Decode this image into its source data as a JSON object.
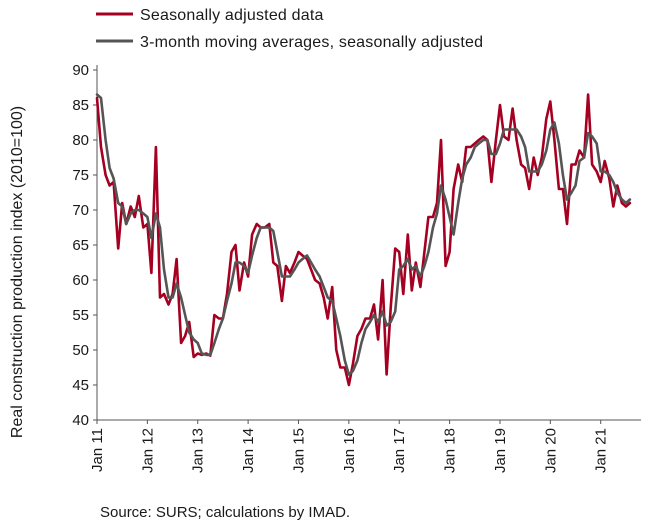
{
  "chart_data": {
    "type": "line",
    "ylabel": "Real construction production index (2010=100)",
    "ylim": [
      40,
      90
    ],
    "yticks": [
      40,
      45,
      50,
      55,
      60,
      65,
      70,
      75,
      80,
      85,
      90
    ],
    "xlim": [
      2011.0,
      2021.8
    ],
    "xticks": [
      {
        "value": 2011,
        "label": "Jan 11"
      },
      {
        "value": 2012,
        "label": "Jan 12"
      },
      {
        "value": 2013,
        "label": "Jan 13"
      },
      {
        "value": 2014,
        "label": "Jan 14"
      },
      {
        "value": 2015,
        "label": "Jan 15"
      },
      {
        "value": 2016,
        "label": "Jan 16"
      },
      {
        "value": 2017,
        "label": "Jan 17"
      },
      {
        "value": 2018,
        "label": "Jan 18"
      },
      {
        "value": 2019,
        "label": "Jan 19"
      },
      {
        "value": 2020,
        "label": "Jan 20"
      },
      {
        "value": 2021,
        "label": "Jan 21"
      }
    ],
    "grid": false,
    "legend": "top-left",
    "series": [
      {
        "name": "Seasonally adjusted data",
        "color": "#a50021",
        "points": [
          [
            2011.0,
            86
          ],
          [
            2011.08,
            79
          ],
          [
            2011.17,
            75
          ],
          [
            2011.25,
            73.5
          ],
          [
            2011.33,
            74
          ],
          [
            2011.42,
            64.5
          ],
          [
            2011.5,
            71
          ],
          [
            2011.58,
            68
          ],
          [
            2011.67,
            70.5
          ],
          [
            2011.75,
            69
          ],
          [
            2011.83,
            72
          ],
          [
            2011.92,
            67.5
          ],
          [
            2012.0,
            68
          ],
          [
            2012.08,
            61
          ],
          [
            2012.17,
            79
          ],
          [
            2012.25,
            57.5
          ],
          [
            2012.33,
            58
          ],
          [
            2012.42,
            56.5
          ],
          [
            2012.5,
            58
          ],
          [
            2012.58,
            63
          ],
          [
            2012.67,
            51
          ],
          [
            2012.75,
            52
          ],
          [
            2012.83,
            54
          ],
          [
            2012.92,
            49
          ],
          [
            2013.0,
            49.5
          ],
          [
            2013.08,
            49.3
          ],
          [
            2013.17,
            49.5
          ],
          [
            2013.25,
            49.2
          ],
          [
            2013.33,
            55
          ],
          [
            2013.42,
            54.5
          ],
          [
            2013.5,
            54.5
          ],
          [
            2013.58,
            58
          ],
          [
            2013.67,
            64
          ],
          [
            2013.75,
            65
          ],
          [
            2013.83,
            58.5
          ],
          [
            2013.92,
            62.5
          ],
          [
            2014.0,
            60.5
          ],
          [
            2014.08,
            66.5
          ],
          [
            2014.17,
            68
          ],
          [
            2014.25,
            67.5
          ],
          [
            2014.33,
            67.5
          ],
          [
            2014.42,
            68
          ],
          [
            2014.5,
            62.5
          ],
          [
            2014.58,
            62
          ],
          [
            2014.67,
            57
          ],
          [
            2014.75,
            62
          ],
          [
            2014.83,
            61
          ],
          [
            2014.92,
            62.5
          ],
          [
            2015.0,
            64
          ],
          [
            2015.08,
            63.5
          ],
          [
            2015.17,
            63
          ],
          [
            2015.25,
            61.5
          ],
          [
            2015.33,
            60
          ],
          [
            2015.42,
            59.5
          ],
          [
            2015.5,
            57.5
          ],
          [
            2015.58,
            54.5
          ],
          [
            2015.67,
            59
          ],
          [
            2015.75,
            50
          ],
          [
            2015.83,
            47.5
          ],
          [
            2015.92,
            47.5
          ],
          [
            2016.0,
            45
          ],
          [
            2016.08,
            48
          ],
          [
            2016.17,
            52
          ],
          [
            2016.25,
            53
          ],
          [
            2016.33,
            54.5
          ],
          [
            2016.42,
            54.5
          ],
          [
            2016.5,
            56.5
          ],
          [
            2016.58,
            51.5
          ],
          [
            2016.67,
            60
          ],
          [
            2016.75,
            46.5
          ],
          [
            2016.83,
            56
          ],
          [
            2016.92,
            64.5
          ],
          [
            2017.0,
            64
          ],
          [
            2017.08,
            58
          ],
          [
            2017.17,
            66.5
          ],
          [
            2017.25,
            58.5
          ],
          [
            2017.33,
            62.5
          ],
          [
            2017.42,
            59
          ],
          [
            2017.5,
            64
          ],
          [
            2017.58,
            69
          ],
          [
            2017.67,
            69
          ],
          [
            2017.75,
            71
          ],
          [
            2017.83,
            80
          ],
          [
            2017.92,
            62
          ],
          [
            2018.0,
            64
          ],
          [
            2018.08,
            73
          ],
          [
            2018.17,
            76.5
          ],
          [
            2018.25,
            74
          ],
          [
            2018.33,
            79
          ],
          [
            2018.42,
            79
          ],
          [
            2018.5,
            79.5
          ],
          [
            2018.58,
            80
          ],
          [
            2018.67,
            80.5
          ],
          [
            2018.75,
            80
          ],
          [
            2018.83,
            74
          ],
          [
            2018.92,
            80
          ],
          [
            2019.0,
            85
          ],
          [
            2019.08,
            80.5
          ],
          [
            2019.17,
            80
          ],
          [
            2019.25,
            84.5
          ],
          [
            2019.33,
            80
          ],
          [
            2019.42,
            76.5
          ],
          [
            2019.5,
            76
          ],
          [
            2019.58,
            73
          ],
          [
            2019.67,
            77.5
          ],
          [
            2019.75,
            75
          ],
          [
            2019.83,
            77.5
          ],
          [
            2019.92,
            83
          ],
          [
            2020.0,
            85.5
          ],
          [
            2020.08,
            80
          ],
          [
            2020.17,
            73
          ],
          [
            2020.25,
            73
          ],
          [
            2020.33,
            68
          ],
          [
            2020.42,
            76.5
          ],
          [
            2020.5,
            76.5
          ],
          [
            2020.58,
            78.5
          ],
          [
            2020.67,
            77.5
          ],
          [
            2020.75,
            86.5
          ],
          [
            2020.83,
            76.5
          ],
          [
            2020.92,
            75.5
          ],
          [
            2021.0,
            74
          ],
          [
            2021.08,
            77
          ],
          [
            2021.17,
            74.5
          ],
          [
            2021.25,
            70.5
          ],
          [
            2021.33,
            73.5
          ],
          [
            2021.42,
            71
          ],
          [
            2021.5,
            70.5
          ],
          [
            2021.58,
            71
          ]
        ]
      },
      {
        "name": "3-month moving averages, seasonally adjusted",
        "color": "#555555",
        "points": [
          [
            2011.0,
            86.5
          ],
          [
            2011.08,
            86
          ],
          [
            2011.17,
            80
          ],
          [
            2011.25,
            76
          ],
          [
            2011.33,
            74.5
          ],
          [
            2011.42,
            71
          ],
          [
            2011.5,
            70.5
          ],
          [
            2011.58,
            68
          ],
          [
            2011.67,
            69.5
          ],
          [
            2011.75,
            70
          ],
          [
            2011.83,
            70
          ],
          [
            2011.92,
            69.5
          ],
          [
            2012.0,
            69
          ],
          [
            2012.08,
            66
          ],
          [
            2012.17,
            69.5
          ],
          [
            2012.25,
            67.5
          ],
          [
            2012.33,
            61.5
          ],
          [
            2012.42,
            57.5
          ],
          [
            2012.5,
            57.5
          ],
          [
            2012.58,
            59.5
          ],
          [
            2012.67,
            57.5
          ],
          [
            2012.75,
            55
          ],
          [
            2012.83,
            52.5
          ],
          [
            2012.92,
            51.5
          ],
          [
            2013.0,
            51
          ],
          [
            2013.08,
            49.5
          ],
          [
            2013.17,
            49.3
          ],
          [
            2013.25,
            49.3
          ],
          [
            2013.33,
            51
          ],
          [
            2013.42,
            53
          ],
          [
            2013.5,
            54.5
          ],
          [
            2013.58,
            57
          ],
          [
            2013.67,
            59.5
          ],
          [
            2013.75,
            62.5
          ],
          [
            2013.83,
            62.5
          ],
          [
            2013.92,
            62
          ],
          [
            2014.0,
            61
          ],
          [
            2014.08,
            63.5
          ],
          [
            2014.17,
            66
          ],
          [
            2014.25,
            67.5
          ],
          [
            2014.33,
            67.5
          ],
          [
            2014.42,
            67.5
          ],
          [
            2014.5,
            67
          ],
          [
            2014.58,
            64
          ],
          [
            2014.67,
            60.5
          ],
          [
            2014.75,
            60.5
          ],
          [
            2014.83,
            60.5
          ],
          [
            2014.92,
            61.5
          ],
          [
            2015.0,
            62.5
          ],
          [
            2015.08,
            63
          ],
          [
            2015.17,
            63.5
          ],
          [
            2015.25,
            62.5
          ],
          [
            2015.33,
            61.5
          ],
          [
            2015.42,
            60.5
          ],
          [
            2015.5,
            59
          ],
          [
            2015.58,
            57.5
          ],
          [
            2015.67,
            57
          ],
          [
            2015.75,
            54.5
          ],
          [
            2015.83,
            52
          ],
          [
            2015.92,
            48.5
          ],
          [
            2016.0,
            46.5
          ],
          [
            2016.08,
            47
          ],
          [
            2016.17,
            48.5
          ],
          [
            2016.25,
            51
          ],
          [
            2016.33,
            53
          ],
          [
            2016.42,
            54
          ],
          [
            2016.5,
            55
          ],
          [
            2016.58,
            54
          ],
          [
            2016.67,
            55.5
          ],
          [
            2016.75,
            53.5
          ],
          [
            2016.83,
            54
          ],
          [
            2016.92,
            55.5
          ],
          [
            2017.0,
            61.5
          ],
          [
            2017.08,
            62
          ],
          [
            2017.17,
            63
          ],
          [
            2017.25,
            61.5
          ],
          [
            2017.33,
            62
          ],
          [
            2017.42,
            60.5
          ],
          [
            2017.5,
            62
          ],
          [
            2017.58,
            64
          ],
          [
            2017.67,
            67.5
          ],
          [
            2017.75,
            69.5
          ],
          [
            2017.83,
            73.5
          ],
          [
            2017.92,
            71.5
          ],
          [
            2018.0,
            69
          ],
          [
            2018.08,
            66.5
          ],
          [
            2018.17,
            71
          ],
          [
            2018.25,
            74.5
          ],
          [
            2018.33,
            76.5
          ],
          [
            2018.42,
            77.5
          ],
          [
            2018.5,
            79
          ],
          [
            2018.58,
            79.5
          ],
          [
            2018.67,
            80
          ],
          [
            2018.75,
            80
          ],
          [
            2018.83,
            78
          ],
          [
            2018.92,
            78
          ],
          [
            2019.0,
            79.5
          ],
          [
            2019.08,
            81.5
          ],
          [
            2019.17,
            81.5
          ],
          [
            2019.25,
            81.5
          ],
          [
            2019.33,
            81.5
          ],
          [
            2019.42,
            80.5
          ],
          [
            2019.5,
            79
          ],
          [
            2019.58,
            75.5
          ],
          [
            2019.67,
            75.5
          ],
          [
            2019.75,
            75.5
          ],
          [
            2019.83,
            76.5
          ],
          [
            2019.92,
            78.5
          ],
          [
            2020.0,
            81.5
          ],
          [
            2020.08,
            82.5
          ],
          [
            2020.17,
            79.5
          ],
          [
            2020.25,
            75
          ],
          [
            2020.33,
            71.5
          ],
          [
            2020.42,
            72.5
          ],
          [
            2020.5,
            73.5
          ],
          [
            2020.58,
            77
          ],
          [
            2020.67,
            77.5
          ],
          [
            2020.75,
            81
          ],
          [
            2020.83,
            80.5
          ],
          [
            2020.92,
            79.5
          ],
          [
            2021.0,
            75.5
          ],
          [
            2021.08,
            75.5
          ],
          [
            2021.17,
            75
          ],
          [
            2021.25,
            74
          ],
          [
            2021.33,
            72.5
          ],
          [
            2021.42,
            71.5
          ],
          [
            2021.5,
            71
          ],
          [
            2021.58,
            71.5
          ]
        ]
      }
    ]
  },
  "footer": {
    "source": "Source: SURS; calculations by IMAD."
  }
}
